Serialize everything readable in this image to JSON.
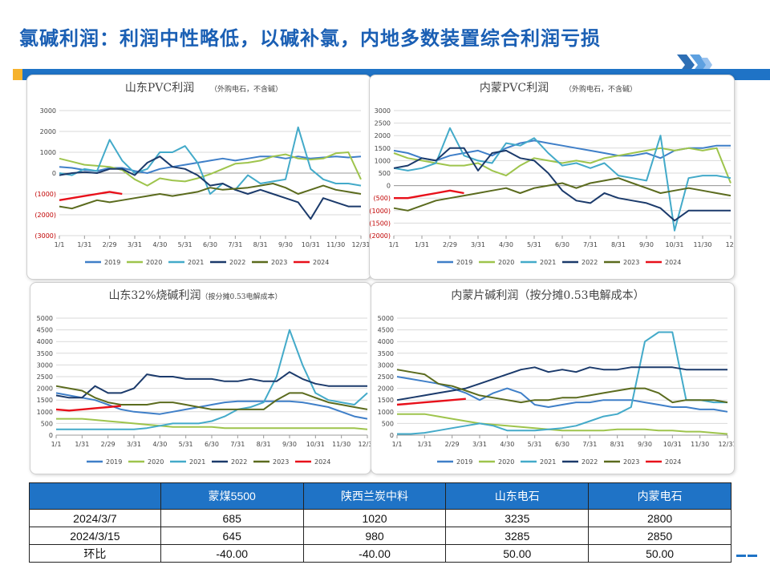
{
  "title": "氯碱利润：利润中性略低，以碱补氯，内地多数装置综合利润亏损",
  "colors": {
    "accent": "#1f73c6",
    "notch": "#f6b22c",
    "title": "#1a5fb4"
  },
  "legend_years": [
    "2019",
    "2020",
    "2021",
    "2022",
    "2023",
    "2024"
  ],
  "series_colors": [
    "#3f7fc8",
    "#9ec44c",
    "#43aac9",
    "#1b3a6b",
    "#5b6b1e",
    "#e8101a"
  ],
  "chart_data": [
    {
      "id": "sd_pvc",
      "type": "line",
      "title": "山东PVC利润",
      "subtitle": "（外购电石，不含碱）",
      "ylim": [
        -3000,
        3000
      ],
      "yticks": [
        {
          "v": -3000,
          "label": "(3000)"
        },
        {
          "v": -2000,
          "label": "(2000)"
        },
        {
          "v": -1000,
          "label": "(1000)"
        },
        {
          "v": 0,
          "label": "0"
        },
        {
          "v": 1000,
          "label": "1000"
        },
        {
          "v": 2000,
          "label": "2000"
        },
        {
          "v": 3000,
          "label": "3000"
        }
      ],
      "xticks": [
        "1/1",
        "1/31",
        "2/29",
        "3/31",
        "4/30",
        "5/31",
        "6/30",
        "7/31",
        "8/31",
        "9/30",
        "10/31",
        "11/30",
        "12/31"
      ],
      "series": [
        {
          "name": "2019",
          "values": [
            300,
            250,
            150,
            100,
            250,
            250,
            100,
            0,
            200,
            300,
            400,
            500,
            600,
            700,
            600,
            700,
            800,
            800,
            700,
            800,
            700,
            750,
            800,
            750,
            800
          ]
        },
        {
          "name": "2020",
          "values": [
            700,
            550,
            400,
            350,
            300,
            150,
            -300,
            -600,
            -250,
            -350,
            -400,
            -250,
            -50,
            200,
            450,
            500,
            600,
            800,
            900,
            700,
            650,
            700,
            950,
            1000,
            -300
          ]
        },
        {
          "name": "2021",
          "values": [
            0,
            -100,
            200,
            100,
            1600,
            600,
            0,
            200,
            1000,
            1000,
            1300,
            500,
            -1000,
            -500,
            -800,
            -100,
            -500,
            -400,
            -300,
            2200,
            200,
            -300,
            -500,
            -500,
            -600
          ]
        },
        {
          "name": "2022",
          "values": [
            -100,
            0,
            50,
            0,
            200,
            200,
            -100,
            500,
            800,
            300,
            200,
            -100,
            -600,
            -500,
            -800,
            -1000,
            -800,
            -1000,
            -1200,
            -1400,
            -2200,
            -1200,
            -1400,
            -1600,
            -1600
          ]
        },
        {
          "name": "2023",
          "values": [
            -1600,
            -1700,
            -1500,
            -1300,
            -1400,
            -1300,
            -1200,
            -1100,
            -1000,
            -1100,
            -1000,
            -900,
            -700,
            -800,
            -750,
            -700,
            -600,
            -500,
            -700,
            -1000,
            -800,
            -600,
            -800,
            -900,
            -1000
          ]
        },
        {
          "name": "2024",
          "values": [
            -1300,
            -1200,
            -1100,
            -1000,
            -900,
            -1000,
            null,
            null,
            null,
            null,
            null,
            null,
            null,
            null,
            null,
            null,
            null,
            null,
            null,
            null,
            null,
            null,
            null,
            null,
            null
          ]
        }
      ]
    },
    {
      "id": "nm_pvc",
      "type": "line",
      "title": "内蒙PVC利润",
      "subtitle": "（外购电石，不含碱）",
      "ylim": [
        -2000,
        3000
      ],
      "yticks": [
        {
          "v": -2000,
          "label": "(2000)"
        },
        {
          "v": -1500,
          "label": "(1500)"
        },
        {
          "v": -1000,
          "label": "(1000)"
        },
        {
          "v": -500,
          "label": "(500)"
        },
        {
          "v": 0,
          "label": "0"
        },
        {
          "v": 500,
          "label": "500"
        },
        {
          "v": 1000,
          "label": "1000"
        },
        {
          "v": 1500,
          "label": "1500"
        },
        {
          "v": 2000,
          "label": "2000"
        },
        {
          "v": 2500,
          "label": "2500"
        },
        {
          "v": 3000,
          "label": "3000"
        }
      ],
      "xticks": [
        "1/1",
        "1/31",
        "2/29",
        "3/31",
        "4/30",
        "5/31",
        "6/30",
        "7/31",
        "8/31",
        "9/30",
        "10/31",
        "11/30",
        "12/"
      ],
      "series": [
        {
          "name": "2019",
          "values": [
            1400,
            1300,
            1100,
            1000,
            1200,
            1300,
            1400,
            1200,
            1500,
            1700,
            1800,
            1700,
            1600,
            1500,
            1400,
            1300,
            1200,
            1200,
            1300,
            1100,
            1400,
            1500,
            1500,
            1600,
            1600
          ]
        },
        {
          "name": "2020",
          "values": [
            1300,
            1100,
            1000,
            900,
            800,
            800,
            900,
            600,
            400,
            800,
            1100,
            1000,
            900,
            1000,
            900,
            1100,
            1200,
            1300,
            1400,
            1500,
            1400,
            1500,
            1400,
            1500,
            100
          ]
        },
        {
          "name": "2021",
          "values": [
            700,
            600,
            700,
            900,
            2300,
            1200,
            1000,
            900,
            1700,
            1600,
            1900,
            1300,
            800,
            900,
            700,
            900,
            400,
            300,
            200,
            2000,
            -1800,
            300,
            400,
            400,
            300
          ]
        },
        {
          "name": "2022",
          "values": [
            700,
            800,
            1100,
            1000,
            1500,
            1500,
            600,
            1300,
            1400,
            1100,
            1000,
            500,
            -200,
            -600,
            -700,
            -300,
            -500,
            -600,
            -700,
            -900,
            -1400,
            -1000,
            -1000,
            -1000,
            -1000
          ]
        },
        {
          "name": "2023",
          "values": [
            -900,
            -1000,
            -800,
            -600,
            -500,
            -400,
            -300,
            -200,
            -100,
            -300,
            -100,
            0,
            100,
            -100,
            100,
            200,
            300,
            100,
            -100,
            -300,
            -200,
            -100,
            -200,
            -300,
            -400
          ]
        },
        {
          "name": "2024",
          "values": [
            -500,
            -500,
            -400,
            -300,
            -200,
            -300,
            null,
            null,
            null,
            null,
            null,
            null,
            null,
            null,
            null,
            null,
            null,
            null,
            null,
            null,
            null,
            null,
            null,
            null,
            null
          ]
        }
      ]
    },
    {
      "id": "sd_caustic",
      "type": "line",
      "title": "山东32%烧碱利润",
      "subtitle": "（按分摊0.53电解成本）",
      "ylim": [
        0,
        5000
      ],
      "yticks": [
        {
          "v": 0,
          "label": "0"
        },
        {
          "v": 500,
          "label": "500"
        },
        {
          "v": 1000,
          "label": "1000"
        },
        {
          "v": 1500,
          "label": "1500"
        },
        {
          "v": 2000,
          "label": "2000"
        },
        {
          "v": 2500,
          "label": "2500"
        },
        {
          "v": 3000,
          "label": "3000"
        },
        {
          "v": 3500,
          "label": "3500"
        },
        {
          "v": 4000,
          "label": "4000"
        },
        {
          "v": 4500,
          "label": "4500"
        },
        {
          "v": 5000,
          "label": "5000"
        }
      ],
      "xticks": [
        "1/1",
        "1/31",
        "2/29",
        "3/31",
        "4/30",
        "5/31",
        "6/30",
        "7/31",
        "8/31",
        "9/30",
        "10/31",
        "11/30",
        "12/31"
      ],
      "series": [
        {
          "name": "2019",
          "values": [
            1800,
            1700,
            1600,
            1500,
            1300,
            1100,
            1000,
            950,
            900,
            1000,
            1100,
            1200,
            1300,
            1400,
            1450,
            1450,
            1450,
            1450,
            1450,
            1400,
            1300,
            1200,
            1000,
            800,
            700
          ]
        },
        {
          "name": "2020",
          "values": [
            700,
            700,
            700,
            650,
            600,
            550,
            500,
            450,
            400,
            350,
            350,
            350,
            350,
            300,
            300,
            300,
            300,
            300,
            300,
            300,
            300,
            300,
            300,
            300,
            250
          ]
        },
        {
          "name": "2021",
          "values": [
            250,
            250,
            250,
            250,
            250,
            250,
            250,
            300,
            400,
            500,
            500,
            500,
            600,
            800,
            1100,
            1200,
            1400,
            2500,
            4500,
            3000,
            1800,
            1500,
            1400,
            1300,
            1800
          ]
        },
        {
          "name": "2022",
          "values": [
            1700,
            1600,
            1600,
            2100,
            1800,
            1800,
            2000,
            2600,
            2500,
            2500,
            2400,
            2400,
            2400,
            2300,
            2300,
            2400,
            2300,
            2300,
            2700,
            2400,
            2200,
            2100,
            2100,
            2100,
            2100
          ]
        },
        {
          "name": "2023",
          "values": [
            2100,
            2000,
            1900,
            1600,
            1400,
            1300,
            1300,
            1300,
            1400,
            1400,
            1300,
            1200,
            1100,
            1100,
            1100,
            1100,
            1100,
            1500,
            1800,
            1800,
            1600,
            1400,
            1300,
            1200,
            1100
          ]
        },
        {
          "name": "2024",
          "values": [
            1100,
            1050,
            1100,
            1150,
            1200,
            1250,
            null,
            null,
            null,
            null,
            null,
            null,
            null,
            null,
            null,
            null,
            null,
            null,
            null,
            null,
            null,
            null,
            null,
            null,
            null
          ]
        }
      ]
    },
    {
      "id": "nm_flake",
      "type": "line",
      "title": "内蒙片碱利润（按分摊0.53电解成本）",
      "subtitle": "",
      "ylim": [
        0,
        5000
      ],
      "yticks": [
        {
          "v": 0,
          "label": "0"
        },
        {
          "v": 500,
          "label": "500"
        },
        {
          "v": 1000,
          "label": "1000"
        },
        {
          "v": 1500,
          "label": "1500"
        },
        {
          "v": 2000,
          "label": "2000"
        },
        {
          "v": 2500,
          "label": "2500"
        },
        {
          "v": 3000,
          "label": "3000"
        },
        {
          "v": 3500,
          "label": "3500"
        },
        {
          "v": 4000,
          "label": "4000"
        },
        {
          "v": 4500,
          "label": "4500"
        },
        {
          "v": 5000,
          "label": "5000"
        }
      ],
      "xticks": [
        "1/1",
        "1/31",
        "2/29",
        "3/31",
        "4/30",
        "5/31",
        "6/30",
        "7/31",
        "8/31",
        "9/30",
        "10/31",
        "11/30",
        "12/31"
      ],
      "series": [
        {
          "name": "2019",
          "values": [
            2500,
            2400,
            2300,
            2200,
            2000,
            1800,
            1500,
            1800,
            2000,
            1800,
            1300,
            1200,
            1300,
            1400,
            1400,
            1500,
            1500,
            1500,
            1400,
            1300,
            1200,
            1200,
            1100,
            1100,
            1000
          ]
        },
        {
          "name": "2020",
          "values": [
            900,
            900,
            900,
            800,
            700,
            600,
            500,
            450,
            400,
            350,
            300,
            250,
            200,
            200,
            200,
            200,
            250,
            250,
            250,
            200,
            200,
            150,
            150,
            100,
            50
          ]
        },
        {
          "name": "2021",
          "values": [
            50,
            50,
            100,
            200,
            300,
            400,
            500,
            400,
            200,
            200,
            200,
            250,
            300,
            400,
            600,
            800,
            900,
            1200,
            4000,
            4400,
            4400,
            1500,
            1500,
            1400,
            1400
          ]
        },
        {
          "name": "2022",
          "values": [
            1500,
            1600,
            1700,
            1800,
            1900,
            2000,
            2200,
            2400,
            2600,
            2800,
            2900,
            2700,
            2800,
            2700,
            2900,
            2800,
            2800,
            2900,
            2900,
            2900,
            2900,
            2800,
            2800,
            2800,
            2800
          ]
        },
        {
          "name": "2023",
          "values": [
            2800,
            2700,
            2600,
            2200,
            2100,
            1900,
            1700,
            1600,
            1500,
            1400,
            1500,
            1500,
            1600,
            1600,
            1700,
            1800,
            1900,
            2000,
            2000,
            1800,
            1400,
            1500,
            1500,
            1500,
            1400
          ]
        },
        {
          "name": "2024",
          "values": [
            1300,
            1350,
            1400,
            1450,
            1500,
            1550,
            null,
            null,
            null,
            null,
            null,
            null,
            null,
            null,
            null,
            null,
            null,
            null,
            null,
            null,
            null,
            null,
            null,
            null,
            null
          ]
        }
      ]
    }
  ],
  "table": {
    "headers": [
      "",
      "蒙煤5500",
      "陕西兰炭中料",
      "山东电石",
      "内蒙电石"
    ],
    "rows": [
      [
        "2024/3/7",
        "685",
        "1020",
        "3235",
        "2800"
      ],
      [
        "2024/3/15",
        "645",
        "980",
        "3285",
        "2850"
      ],
      [
        "环比",
        "-40.00",
        "-40.00",
        "50.00",
        "50.00"
      ]
    ]
  }
}
